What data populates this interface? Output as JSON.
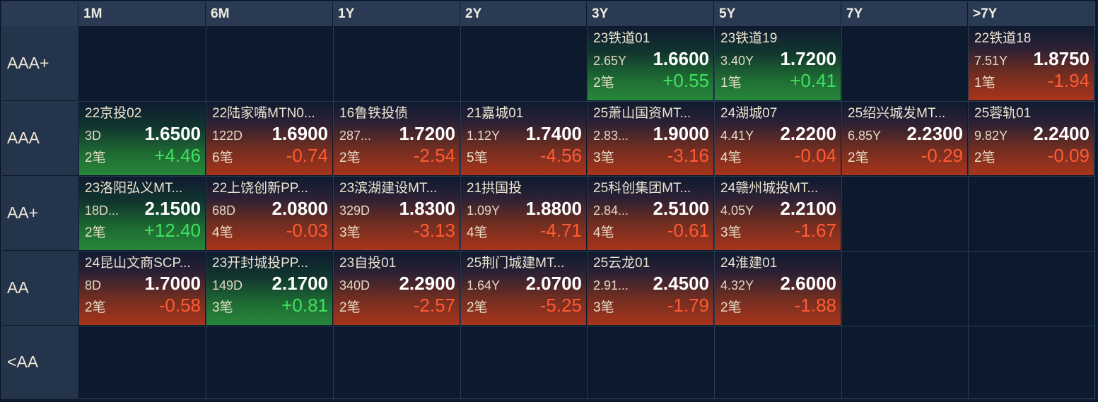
{
  "columns": [
    "1M",
    "6M",
    "1Y",
    "2Y",
    "3Y",
    "5Y",
    "7Y",
    ">7Y"
  ],
  "rows": [
    "AAA+",
    "AAA",
    "AA+",
    "AA",
    "<AA"
  ],
  "cells": {
    "r0c4": {
      "name": "23铁道01",
      "tenor": "2.65Y",
      "yield": "1.6600",
      "count": "2笔",
      "change": "+0.55",
      "dir": "up"
    },
    "r0c5": {
      "name": "23铁道19",
      "tenor": "3.40Y",
      "yield": "1.7200",
      "count": "1笔",
      "change": "+0.41",
      "dir": "up"
    },
    "r0c7": {
      "name": "22铁道18",
      "tenor": "7.51Y",
      "yield": "1.8750",
      "count": "1笔",
      "change": "-1.94",
      "dir": "down"
    },
    "r1c0": {
      "name": "22京投02",
      "tenor": "3D",
      "yield": "1.6500",
      "count": "2笔",
      "change": "+4.46",
      "dir": "up"
    },
    "r1c1": {
      "name": "22陆家嘴MTN0...",
      "tenor": "122D",
      "yield": "1.6900",
      "count": "6笔",
      "change": "-0.74",
      "dir": "down"
    },
    "r1c2": {
      "name": "16鲁铁投债",
      "tenor": "287...",
      "yield": "1.7200",
      "count": "2笔",
      "change": "-2.54",
      "dir": "down"
    },
    "r1c3": {
      "name": "21嘉城01",
      "tenor": "1.12Y",
      "yield": "1.7400",
      "count": "5笔",
      "change": "-4.56",
      "dir": "down"
    },
    "r1c4": {
      "name": "25萧山国资MT...",
      "tenor": "2.83...",
      "yield": "1.9000",
      "count": "3笔",
      "change": "-3.16",
      "dir": "down"
    },
    "r1c5": {
      "name": "24湖城07",
      "tenor": "4.41Y",
      "yield": "2.2200",
      "count": "4笔",
      "change": "-0.04",
      "dir": "down"
    },
    "r1c6": {
      "name": "25绍兴城发MT...",
      "tenor": "6.85Y",
      "yield": "2.2300",
      "count": "2笔",
      "change": "-0.29",
      "dir": "down"
    },
    "r1c7": {
      "name": "25蓉轨01",
      "tenor": "9.82Y",
      "yield": "2.2400",
      "count": "2笔",
      "change": "-0.09",
      "dir": "down"
    },
    "r2c0": {
      "name": "23洛阳弘义MT...",
      "tenor": "18D...",
      "yield": "2.1500",
      "count": "2笔",
      "change": "+12.40",
      "dir": "up"
    },
    "r2c1": {
      "name": "22上饶创新PP...",
      "tenor": "68D",
      "yield": "2.0800",
      "count": "4笔",
      "change": "-0.03",
      "dir": "down"
    },
    "r2c2": {
      "name": "23滨湖建设MT...",
      "tenor": "329D",
      "yield": "1.8300",
      "count": "3笔",
      "change": "-3.13",
      "dir": "down"
    },
    "r2c3": {
      "name": "21拱国投",
      "tenor": "1.09Y",
      "yield": "1.8800",
      "count": "4笔",
      "change": "-4.71",
      "dir": "down"
    },
    "r2c4": {
      "name": "25科创集团MT...",
      "tenor": "2.84...",
      "yield": "2.5100",
      "count": "4笔",
      "change": "-0.61",
      "dir": "down"
    },
    "r2c5": {
      "name": "24赣州城投MT...",
      "tenor": "4.05Y",
      "yield": "2.2100",
      "count": "3笔",
      "change": "-1.67",
      "dir": "down"
    },
    "r3c0": {
      "name": "24昆山文商SCP...",
      "tenor": "8D",
      "yield": "1.7000",
      "count": "2笔",
      "change": "-0.58",
      "dir": "down"
    },
    "r3c1": {
      "name": "23开封城投PP...",
      "tenor": "149D",
      "yield": "2.1700",
      "count": "3笔",
      "change": "+0.81",
      "dir": "up"
    },
    "r3c2": {
      "name": "23自投01",
      "tenor": "340D",
      "yield": "2.2900",
      "count": "2笔",
      "change": "-2.57",
      "dir": "down"
    },
    "r3c3": {
      "name": "25荆门城建MT...",
      "tenor": "1.64Y",
      "yield": "2.0700",
      "count": "2笔",
      "change": "-5.25",
      "dir": "down"
    },
    "r3c4": {
      "name": "25云龙01",
      "tenor": "2.91...",
      "yield": "2.4500",
      "count": "3笔",
      "change": "-1.79",
      "dir": "down"
    },
    "r3c5": {
      "name": "24淮建01",
      "tenor": "4.32Y",
      "yield": "2.6000",
      "count": "2笔",
      "change": "-1.88",
      "dir": "down"
    }
  }
}
